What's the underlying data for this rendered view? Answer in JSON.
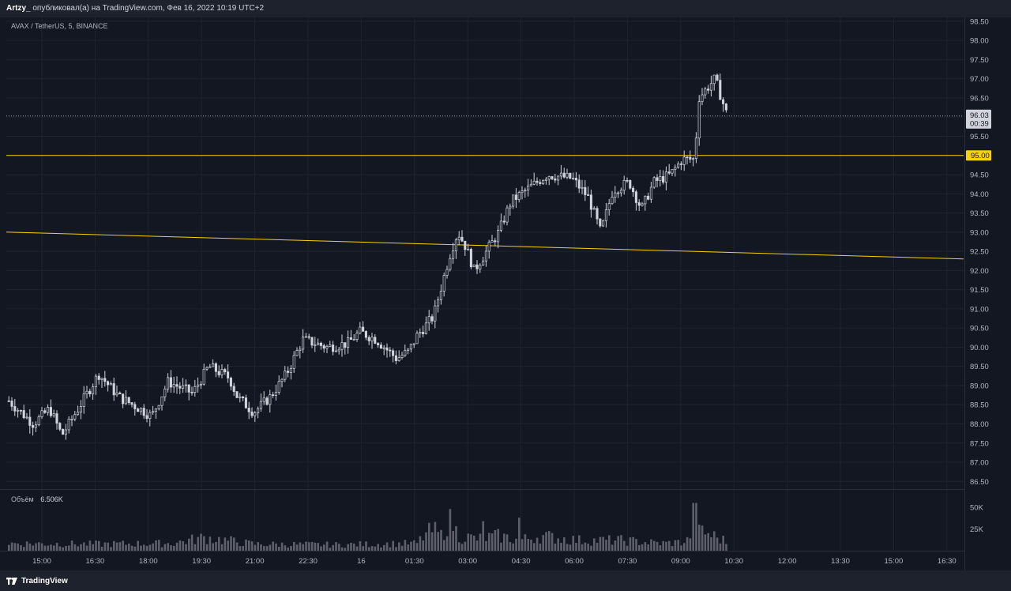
{
  "header": {
    "author": "Artzy_",
    "text": "опубликовал(а) на TradingView.com, Фев 16, 2022 10:19 UTC+2"
  },
  "symbol": "AVAX / TetherUS, 5, BINANCE",
  "volume_legend": {
    "label": "Объём",
    "value": "6.506K"
  },
  "footer": {
    "brand": "TradingView",
    "icon": "tradingview-logo-icon"
  },
  "colors": {
    "background": "#131722",
    "grid": "#1f2330",
    "candle": "#d1d4dc",
    "level_line": "#f5d10e",
    "price_label_bg": "#d1d4dc"
  },
  "chart_data": {
    "type": "candlestick",
    "y_ticks": [
      "98.50",
      "98.00",
      "97.50",
      "97.00",
      "96.50",
      "96.00",
      "95.50",
      "95.00",
      "94.50",
      "94.00",
      "93.50",
      "93.00",
      "92.50",
      "92.00",
      "91.50",
      "91.00",
      "90.50",
      "90.00",
      "89.50",
      "89.00",
      "88.50",
      "88.00",
      "87.50",
      "87.00",
      "86.50"
    ],
    "ylim": [
      86.3,
      98.6
    ],
    "x_ticks": [
      "15:00",
      "16:30",
      "18:00",
      "19:30",
      "21:00",
      "22:30",
      "16",
      "01:30",
      "03:00",
      "04:30",
      "06:00",
      "07:30",
      "09:00",
      "10:30",
      "12:00",
      "13:30",
      "15:00",
      "16:30"
    ],
    "volume_ticks": [
      "50K",
      "25K"
    ],
    "volume_ylim": [
      0,
      70
    ],
    "current_price": {
      "value": "96.03",
      "countdown": "00:39"
    },
    "horizontal_level": {
      "value": "95.00",
      "price": 95.0
    },
    "trend_line": {
      "start_price": 93.0,
      "end_price": 92.3
    },
    "price_path": [
      [
        0,
        88.6
      ],
      [
        6,
        88.0
      ],
      [
        10,
        88.4
      ],
      [
        13,
        87.7
      ],
      [
        17,
        88.4
      ],
      [
        22,
        89.3
      ],
      [
        27,
        88.7
      ],
      [
        32,
        88.4
      ],
      [
        35,
        88.2
      ],
      [
        39,
        89.1
      ],
      [
        45,
        88.8
      ],
      [
        49,
        89.5
      ],
      [
        54,
        89.2
      ],
      [
        56,
        88.7
      ],
      [
        60,
        88.3
      ],
      [
        64,
        88.7
      ],
      [
        68,
        89.3
      ],
      [
        72,
        90.2
      ],
      [
        78,
        90.0
      ],
      [
        83,
        90.1
      ],
      [
        86,
        90.4
      ],
      [
        90,
        90.2
      ],
      [
        95,
        89.7
      ],
      [
        98,
        89.9
      ],
      [
        100,
        90.3
      ],
      [
        104,
        90.8
      ],
      [
        106,
        91.6
      ],
      [
        108,
        92.4
      ],
      [
        110,
        93.0
      ],
      [
        112,
        92.6
      ],
      [
        114,
        92.0
      ],
      [
        117,
        92.5
      ],
      [
        120,
        93.0
      ],
      [
        123,
        93.8
      ],
      [
        128,
        94.2
      ],
      [
        132,
        94.5
      ],
      [
        138,
        94.4
      ],
      [
        142,
        93.9
      ],
      [
        145,
        93.0
      ],
      [
        148,
        94.1
      ],
      [
        152,
        94.3
      ],
      [
        155,
        93.6
      ],
      [
        158,
        94.3
      ],
      [
        162,
        94.5
      ],
      [
        165,
        94.9
      ],
      [
        168,
        94.9
      ],
      [
        169,
        96.5
      ],
      [
        173,
        97.0
      ],
      [
        176,
        96.03
      ]
    ],
    "volume_profile": [
      [
        0,
        10
      ],
      [
        20,
        9
      ],
      [
        40,
        10
      ],
      [
        48,
        18
      ],
      [
        60,
        9
      ],
      [
        80,
        8
      ],
      [
        100,
        10
      ],
      [
        102,
        22
      ],
      [
        104,
        28
      ],
      [
        106,
        20
      ],
      [
        108,
        48
      ],
      [
        110,
        20
      ],
      [
        115,
        16
      ],
      [
        120,
        20
      ],
      [
        125,
        14
      ],
      [
        130,
        20
      ],
      [
        140,
        14
      ],
      [
        150,
        14
      ],
      [
        160,
        10
      ],
      [
        166,
        12
      ],
      [
        168,
        34
      ],
      [
        170,
        26
      ],
      [
        176,
        12
      ]
    ],
    "volume_spikes": [
      [
        108,
        48
      ],
      [
        116,
        34
      ],
      [
        125,
        38
      ],
      [
        168,
        55
      ],
      [
        169,
        30
      ]
    ]
  }
}
